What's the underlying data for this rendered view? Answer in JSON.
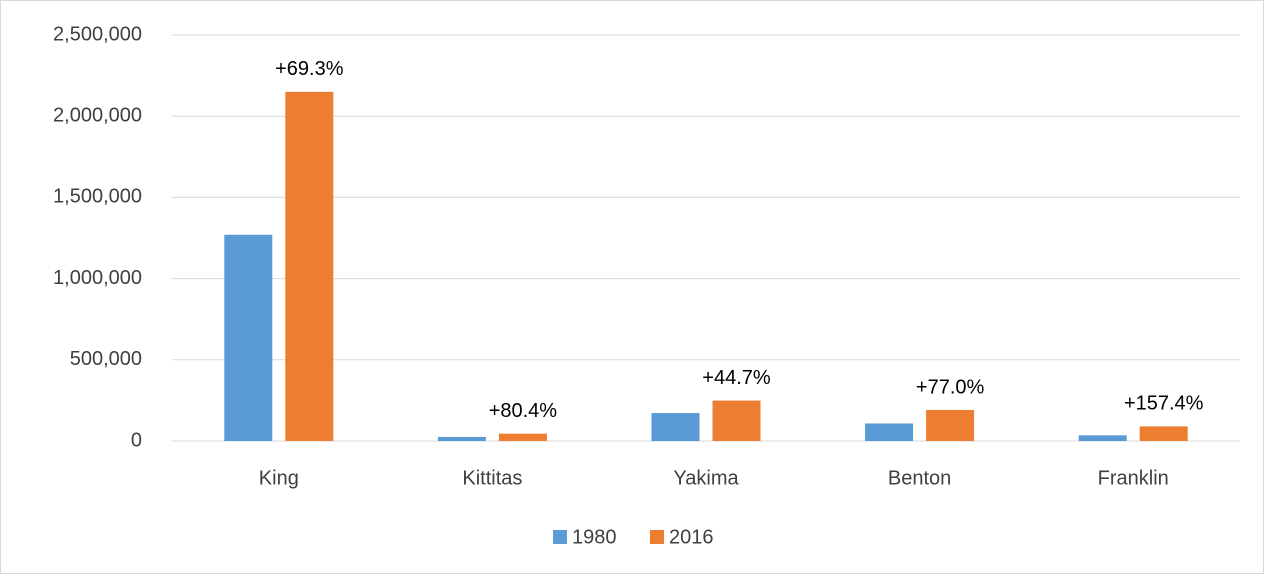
{
  "chart_data": {
    "type": "bar",
    "categories": [
      "King",
      "Kittitas",
      "Yakima",
      "Benton",
      "Franklin"
    ],
    "series": [
      {
        "name": "1980",
        "color": "#5b9bd5",
        "values": [
          1270000,
          25000,
          172000,
          108000,
          35000
        ]
      },
      {
        "name": "2016",
        "color": "#ed7d31",
        "values": [
          2150000,
          45000,
          249000,
          191000,
          90000
        ]
      }
    ],
    "annotations": [
      "+69.3%",
      "+80.4%",
      "+44.7%",
      "+77.0%",
      "+157.4%"
    ],
    "ylim": [
      0,
      2500000
    ],
    "yticks": [
      0,
      {
        "value": 500000,
        "label": "500,000"
      },
      {
        "value": 1000000,
        "label": "1,000,000"
      },
      {
        "value": 1500000,
        "label": "1,500,000"
      },
      {
        "value": 2000000,
        "label": "2,000,000"
      },
      {
        "value": 2500000,
        "label": "2,500,000"
      }
    ],
    "grid": true,
    "legend": "bottom"
  }
}
